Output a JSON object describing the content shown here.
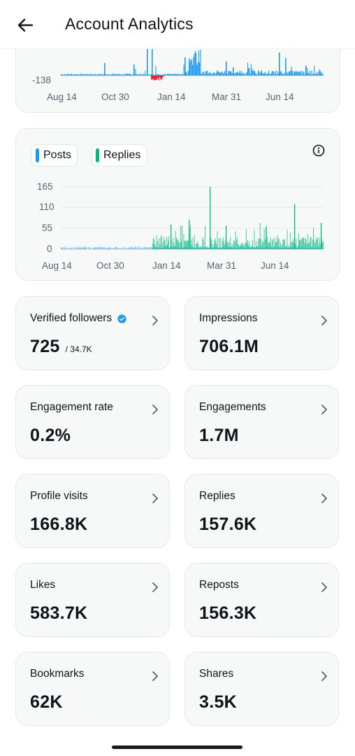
{
  "header": {
    "title": "Account Analytics",
    "back_icon": "arrow-left-icon"
  },
  "chart_top": {
    "y_label_bottom": "-138",
    "x_ticks": [
      "Aug 14",
      "Oct 30",
      "Jan 14",
      "Mar 31",
      "Jun 14"
    ]
  },
  "chart_posts": {
    "legend": [
      "Posts",
      "Replies"
    ],
    "x_ticks": [
      "Aug 14",
      "Oct 30",
      "Jan 14",
      "Mar 31",
      "Jun 14"
    ],
    "y_ticks": [
      "165",
      "110",
      "55",
      "0"
    ],
    "info_icon": "info-icon"
  },
  "chart_data": [
    {
      "type": "bar",
      "title": "",
      "xlabel": "",
      "ylabel": "",
      "x_ticks": [
        "Aug 14",
        "Oct 30",
        "Jan 14",
        "Mar 31",
        "Jun 14"
      ],
      "ylim": [
        -138,
        552
      ],
      "series": [
        {
          "color": "#1d9bf0",
          "peaks": [
            {
              "x": "Oct 30",
              "y": 60
            },
            {
              "x": "Jan 14",
              "y": 420
            },
            {
              "x": "Jan 14",
              "y": 450
            },
            {
              "x": "Mar 31",
              "y": 90
            },
            {
              "x": "Jun 14",
              "y": 330
            }
          ]
        },
        {
          "color": "#f4212e",
          "troughs": [
            {
              "x": "Jan 14",
              "y": -45
            }
          ]
        }
      ]
    },
    {
      "type": "bar",
      "title": "",
      "xlabel": "",
      "ylabel": "",
      "x_ticks": [
        "Aug 14",
        "Oct 30",
        "Jan 14",
        "Mar 31",
        "Jun 14"
      ],
      "y_ticks": [
        0,
        55,
        110,
        165
      ],
      "ylim": [
        0,
        165
      ],
      "series": [
        {
          "name": "Posts",
          "color": "#1d9bf0",
          "typical_range": [
            0,
            12
          ]
        },
        {
          "name": "Replies",
          "color": "#00ba7c",
          "typical_range": [
            0,
            60
          ],
          "max": 165
        }
      ]
    }
  ],
  "metrics": [
    {
      "label": "Verified followers",
      "value": "725",
      "sub": "/ 34.7K",
      "verified": true
    },
    {
      "label": "Impressions",
      "value": "706.1M"
    },
    {
      "label": "Engagement rate",
      "value": "0.2%"
    },
    {
      "label": "Engagements",
      "value": "1.7M"
    },
    {
      "label": "Profile visits",
      "value": "166.8K"
    },
    {
      "label": "Replies",
      "value": "157.6K"
    },
    {
      "label": "Likes",
      "value": "583.7K"
    },
    {
      "label": "Reposts",
      "value": "156.3K"
    },
    {
      "label": "Bookmarks",
      "value": "62K"
    },
    {
      "label": "Shares",
      "value": "3.5K"
    }
  ],
  "colors": {
    "posts": "#1d9bf0",
    "replies": "#00ba7c",
    "negative": "#f4212e",
    "verified": "#1d9bf0"
  }
}
